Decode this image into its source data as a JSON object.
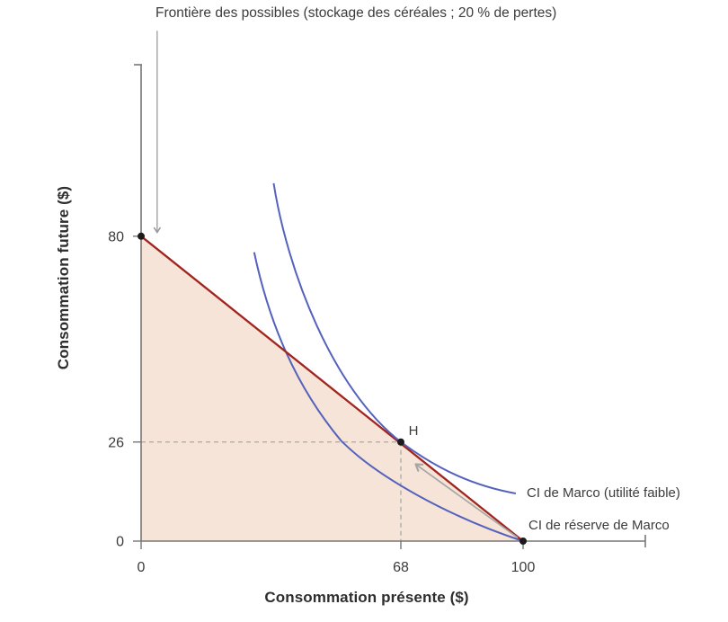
{
  "colors": {
    "frontier": "#a1241f",
    "indifference": "#5562bd",
    "feasible_fill": "#f5e4d7",
    "axis": "#767676",
    "dashed_guide": "#a9a9a9",
    "arrow": "#a6a6a6",
    "annotation_arrow": "#9b9b9b",
    "point": "#1b1b1b",
    "text": "#3b3b3b"
  },
  "chart_data": {
    "type": "line",
    "title": "Frontière des possibles (stockage des céréales ; 20 % de pertes)",
    "xlabel": "Consommation présente ($)",
    "ylabel": "Consommation future ($)",
    "x_ticks": [
      0,
      68,
      100
    ],
    "y_ticks": [
      0,
      26,
      80
    ],
    "x_range": [
      0,
      132
    ],
    "y_range": [
      0,
      125
    ],
    "grid": false,
    "legend_position": "inline-right",
    "frontier": {
      "name": "Frontière des possibles (stockage des céréales ; 20 % de pertes)",
      "points": [
        [
          0,
          80
        ],
        [
          100,
          0
        ]
      ]
    },
    "feasible_set": [
      [
        0,
        80
      ],
      [
        0,
        0
      ],
      [
        100,
        0
      ]
    ],
    "points": [
      {
        "id": "intercept",
        "label": "",
        "x": 0,
        "y": 80
      },
      {
        "id": "H",
        "label": "H",
        "x": 68,
        "y": 26
      },
      {
        "id": "endowment",
        "label": "",
        "x": 100,
        "y": 0
      }
    ],
    "dashed_guides": [
      {
        "from": [
          0,
          26
        ],
        "to": [
          68,
          26
        ]
      },
      {
        "from": [
          68,
          26
        ],
        "to": [
          68,
          0
        ]
      }
    ],
    "indifference_curves": [
      {
        "label": "CI de Marco (utilité faible)",
        "bezier": [
          [
            34.7,
            93.9
          ],
          [
            38.3,
            71.1
          ],
          [
            50.0,
            40.0
          ],
          [
            68,
            26
          ],
          [
            78.2,
            18.4
          ],
          [
            87.6,
            14.4
          ],
          [
            98.1,
            12.5
          ]
        ]
      },
      {
        "label": "CI de réserve de Marco",
        "bezier": [
          [
            29.6,
            75.8
          ],
          [
            33.6,
            56.9
          ],
          [
            40.6,
            40.5
          ],
          [
            52.3,
            26.4
          ],
          [
            61.7,
            16.9
          ],
          [
            80.5,
            6.4
          ],
          [
            100,
            0
          ]
        ]
      }
    ],
    "arrow_to_H": {
      "from": [
        98.6,
        0.9
      ],
      "to": [
        72.1,
        20.0
      ]
    },
    "annotation_arrow": {
      "x": 4.2,
      "from_y": 133.9,
      "to_y": 81.2
    }
  }
}
